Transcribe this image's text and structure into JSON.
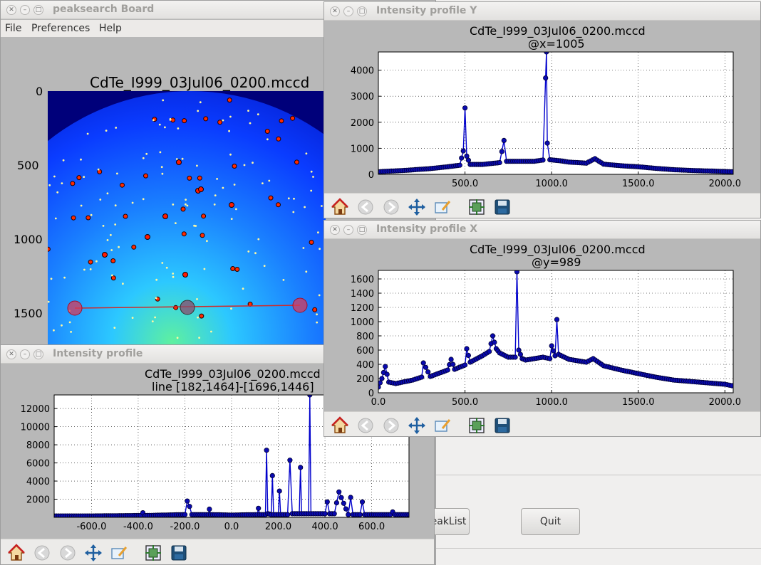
{
  "board": {
    "title": "peaksearch Board",
    "menu": [
      "File",
      "Preferences",
      "Help"
    ],
    "image_title": "CdTe_I999_03Jul06_0200.mccd",
    "image_yticks": [
      "0",
      "500",
      "1000",
      "1500"
    ],
    "buttons": {
      "peaklist": "eakList",
      "quit": "Quit"
    }
  },
  "profile_y": {
    "title": "Intensity profile Y",
    "chart_title": "CdTe_I999_03Jul06_0200.mccd",
    "chart_subtitle": "@x=1005"
  },
  "profile_x": {
    "title": "Intensity profile X",
    "chart_title": "CdTe_I999_03Jul06_0200.mccd",
    "chart_subtitle": "@y=989"
  },
  "profile_line": {
    "title": "Intensity profile",
    "chart_title": "CdTe_I999_03Jul06_0200.mccd",
    "chart_subtitle": "line [182,1464]-[1696,1446]"
  },
  "toolbar_icons": [
    "home-icon",
    "back-icon",
    "forward-icon",
    "pan-icon",
    "zoom-icon",
    "subplots-icon",
    "save-icon"
  ],
  "colors": {
    "series": "#0000cc",
    "marker_edge": "#000033",
    "window_bg": "#b8b8b8",
    "line_overlay": "#d22a2a"
  },
  "chart_data": [
    {
      "type": "line",
      "title": "CdTe_I999_03Jul06_0200.mccd",
      "subtitle": "@x=1005",
      "xlim": [
        0,
        2048
      ],
      "ylim": [
        0,
        4700
      ],
      "xticks": [
        500,
        1000,
        1500,
        2000
      ],
      "xtick_labels": [
        "500.0",
        "1000.0",
        "1500.0",
        "2000.0"
      ],
      "yticks": [
        0,
        1000,
        2000,
        3000,
        4000
      ],
      "ytick_labels": [
        "0",
        "1000",
        "2000",
        "3000",
        "4000"
      ],
      "grid": true,
      "series": [
        {
          "x": [
            0,
            150,
            300,
            400,
            470,
            490,
            500,
            510,
            530,
            600,
            700,
            725,
            740,
            800,
            900,
            950,
            965,
            970,
            975,
            990,
            1050,
            1100,
            1200,
            1250,
            1300,
            1400,
            1500,
            1600,
            1700,
            1800,
            1900,
            2000,
            2040
          ],
          "y": [
            100,
            150,
            220,
            290,
            350,
            900,
            2550,
            700,
            380,
            380,
            450,
            1300,
            500,
            500,
            500,
            550,
            3700,
            4700,
            1200,
            560,
            520,
            470,
            430,
            600,
            390,
            330,
            290,
            230,
            180,
            150,
            130,
            110,
            100
          ]
        }
      ]
    },
    {
      "type": "line",
      "title": "CdTe_I999_03Jul06_0200.mccd",
      "subtitle": "@y=989",
      "xlim": [
        0,
        2048
      ],
      "ylim": [
        0,
        1720
      ],
      "xticks": [
        0,
        500,
        1000,
        1500,
        2000
      ],
      "xtick_labels": [
        "0.0",
        "500.0",
        "1000.0",
        "1500.0",
        "2000.0"
      ],
      "yticks": [
        0,
        200,
        400,
        600,
        800,
        1000,
        1200,
        1400,
        1600
      ],
      "ytick_labels": [
        "0",
        "200",
        "400",
        "600",
        "800",
        "1000",
        "1200",
        "1400",
        "1600"
      ],
      "grid": true,
      "series": [
        {
          "x": [
            0,
            20,
            40,
            60,
            100,
            200,
            250,
            260,
            300,
            400,
            420,
            440,
            500,
            510,
            530,
            600,
            640,
            660,
            680,
            700,
            750,
            790,
            800,
            810,
            830,
            850,
            900,
            950,
            990,
            1000,
            1020,
            1030,
            1040,
            1100,
            1200,
            1240,
            1300,
            1400,
            1500,
            1600,
            1700,
            1800,
            1900,
            2000,
            2040
          ],
          "y": [
            80,
            200,
            370,
            150,
            130,
            180,
            220,
            420,
            230,
            320,
            470,
            330,
            390,
            620,
            430,
            520,
            580,
            800,
            620,
            560,
            500,
            500,
            1700,
            600,
            480,
            460,
            480,
            500,
            480,
            660,
            520,
            1030,
            540,
            470,
            430,
            480,
            380,
            320,
            270,
            220,
            180,
            160,
            140,
            120,
            100
          ]
        }
      ]
    },
    {
      "type": "line",
      "title": "CdTe_I999_03Jul06_0200.mccd",
      "subtitle": "line [182,1464]-[1696,1446]",
      "xlim": [
        -760,
        760
      ],
      "ylim": [
        0,
        13500
      ],
      "xticks": [
        -600,
        -400,
        -200,
        0,
        200,
        400,
        600
      ],
      "xtick_labels": [
        "-600.0",
        "-400.0",
        "-200.0",
        "0.0",
        "200.0",
        "400.0",
        "600.0"
      ],
      "yticks": [
        2000,
        4000,
        6000,
        8000,
        10000,
        12000
      ],
      "ytick_labels": [
        "2000",
        "4000",
        "6000",
        "8000",
        "10000",
        "12000"
      ],
      "grid": true,
      "series": [
        {
          "x": [
            -760,
            -600,
            -390,
            -380,
            -370,
            -200,
            -190,
            -180,
            -170,
            -100,
            -95,
            -90,
            0,
            110,
            115,
            120,
            145,
            150,
            155,
            170,
            175,
            180,
            200,
            205,
            210,
            240,
            250,
            260,
            290,
            295,
            300,
            330,
            335,
            340,
            350,
            400,
            410,
            420,
            440,
            460,
            500,
            510,
            520,
            550,
            560,
            570,
            600,
            680,
            690,
            700,
            760
          ],
          "y": [
            150,
            150,
            200,
            500,
            200,
            300,
            1800,
            1200,
            300,
            300,
            900,
            300,
            250,
            300,
            1000,
            300,
            300,
            7400,
            400,
            300,
            4600,
            300,
            300,
            2900,
            300,
            300,
            6300,
            400,
            400,
            5500,
            400,
            400,
            13500,
            400,
            400,
            400,
            1700,
            400,
            400,
            2800,
            300,
            2200,
            300,
            300,
            1700,
            300,
            300,
            300,
            600,
            300,
            300
          ]
        }
      ]
    }
  ]
}
